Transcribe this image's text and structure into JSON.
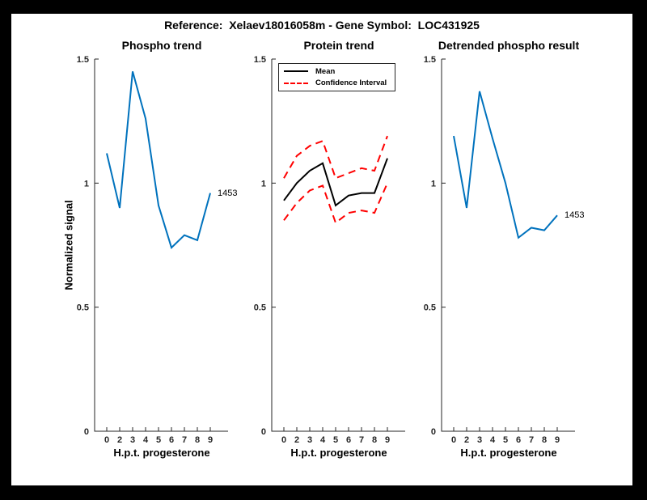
{
  "figure": {
    "title": "Reference:  Xelaev18016058m - Gene Symbol:  LOC431925",
    "frame_color": "#000000",
    "background": "#ffffff"
  },
  "axes_style": {
    "axis_color": "#262626",
    "blue": "#0072BD",
    "red": "#FF0000",
    "black": "#000000"
  },
  "chart_data": [
    {
      "type": "line",
      "title": "Phospho trend",
      "xlabel": "H.p.t. progesterone",
      "ylabel": "Normalized signal",
      "categories": [
        "0",
        "2",
        "3",
        "4",
        "5",
        "6",
        "7",
        "8",
        "9"
      ],
      "ylim": [
        0,
        1.5
      ],
      "yticks": [
        "0",
        "0.5",
        "1",
        "1.5"
      ],
      "grid": false,
      "legend": null,
      "end_label": "1453",
      "series": [
        {
          "name": "phospho",
          "color": "#0072BD",
          "style": "solid",
          "values": [
            1.12,
            0.9,
            1.45,
            1.26,
            0.91,
            0.74,
            0.79,
            0.77,
            0.96
          ]
        }
      ]
    },
    {
      "type": "line",
      "title": "Protein trend",
      "xlabel": "H.p.t. progesterone",
      "ylabel": "",
      "categories": [
        "0",
        "2",
        "3",
        "4",
        "5",
        "6",
        "7",
        "8",
        "9"
      ],
      "ylim": [
        0,
        1.5
      ],
      "yticks": [
        "0",
        "0.5",
        "1",
        "1.5"
      ],
      "grid": false,
      "legend": [
        {
          "label": "Mean",
          "color": "#000000",
          "style": "solid"
        },
        {
          "label": "Confidence Interval",
          "color": "#FF0000",
          "style": "dashed"
        }
      ],
      "end_label": null,
      "series": [
        {
          "name": "mean",
          "color": "#000000",
          "style": "solid",
          "values": [
            0.93,
            1.0,
            1.05,
            1.08,
            0.91,
            0.95,
            0.96,
            0.96,
            1.1
          ]
        },
        {
          "name": "ci-upper",
          "color": "#FF0000",
          "style": "dashed",
          "values": [
            1.02,
            1.11,
            1.15,
            1.17,
            1.02,
            1.04,
            1.06,
            1.05,
            1.19
          ]
        },
        {
          "name": "ci-lower",
          "color": "#FF0000",
          "style": "dashed",
          "values": [
            0.85,
            0.92,
            0.97,
            0.99,
            0.84,
            0.88,
            0.89,
            0.88,
            1.0
          ]
        }
      ]
    },
    {
      "type": "line",
      "title": "Detrended phospho result",
      "xlabel": "H.p.t. progesterone",
      "ylabel": "",
      "categories": [
        "0",
        "2",
        "3",
        "4",
        "5",
        "6",
        "7",
        "8",
        "9"
      ],
      "ylim": [
        0,
        1.5
      ],
      "yticks": [
        "0",
        "0.5",
        "1",
        "1.5"
      ],
      "grid": false,
      "legend": null,
      "end_label": "1453",
      "series": [
        {
          "name": "detrended",
          "color": "#0072BD",
          "style": "solid",
          "values": [
            1.19,
            0.9,
            1.37,
            1.18,
            1.0,
            0.78,
            0.82,
            0.81,
            0.87
          ]
        }
      ]
    }
  ]
}
